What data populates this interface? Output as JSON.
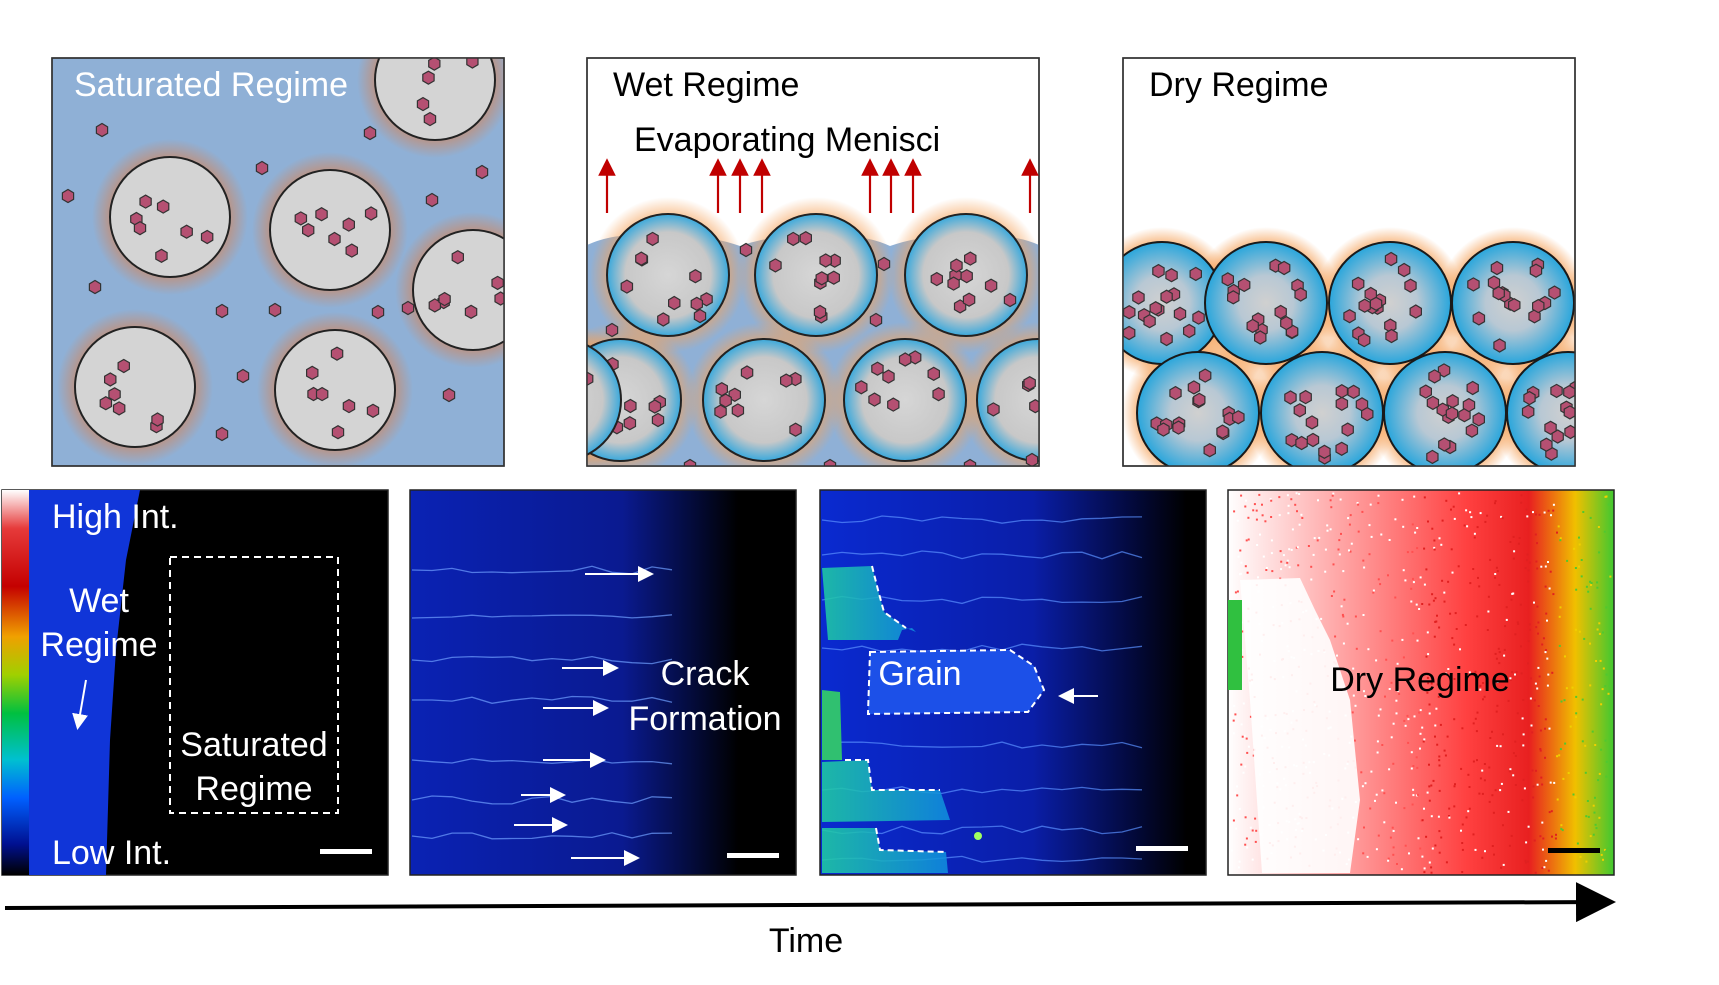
{
  "top_row": {
    "saturated": {
      "title": "Saturated Regime"
    },
    "wet": {
      "title": "Wet Regime",
      "subtitle": "Evaporating Menisci"
    },
    "dry": {
      "title": "Dry Regime"
    }
  },
  "bottom_row": {
    "colorbar": {
      "high": "High Int.",
      "low": "Low Int."
    },
    "panel1": {
      "wet_line1": "Wet",
      "wet_line2": "Regime",
      "sat_line1": "Saturated",
      "sat_line2": "Regime"
    },
    "panel2": {
      "line1": "Crack",
      "line2": "Formation"
    },
    "panel3": {
      "label": "Grain"
    },
    "panel4": {
      "label": "Dry Regime"
    }
  },
  "time_axis": {
    "label": "Time"
  },
  "colors": {
    "liquid_blue": "#8fb0d6",
    "particle_fill": "#d4d4d4",
    "particle_shell_dry": "#3aa9dc",
    "halo_orange": "#f5a25a",
    "solute": "#b55072",
    "arrow_red": "#c00000",
    "micro_blue": "#0a1fc8"
  }
}
